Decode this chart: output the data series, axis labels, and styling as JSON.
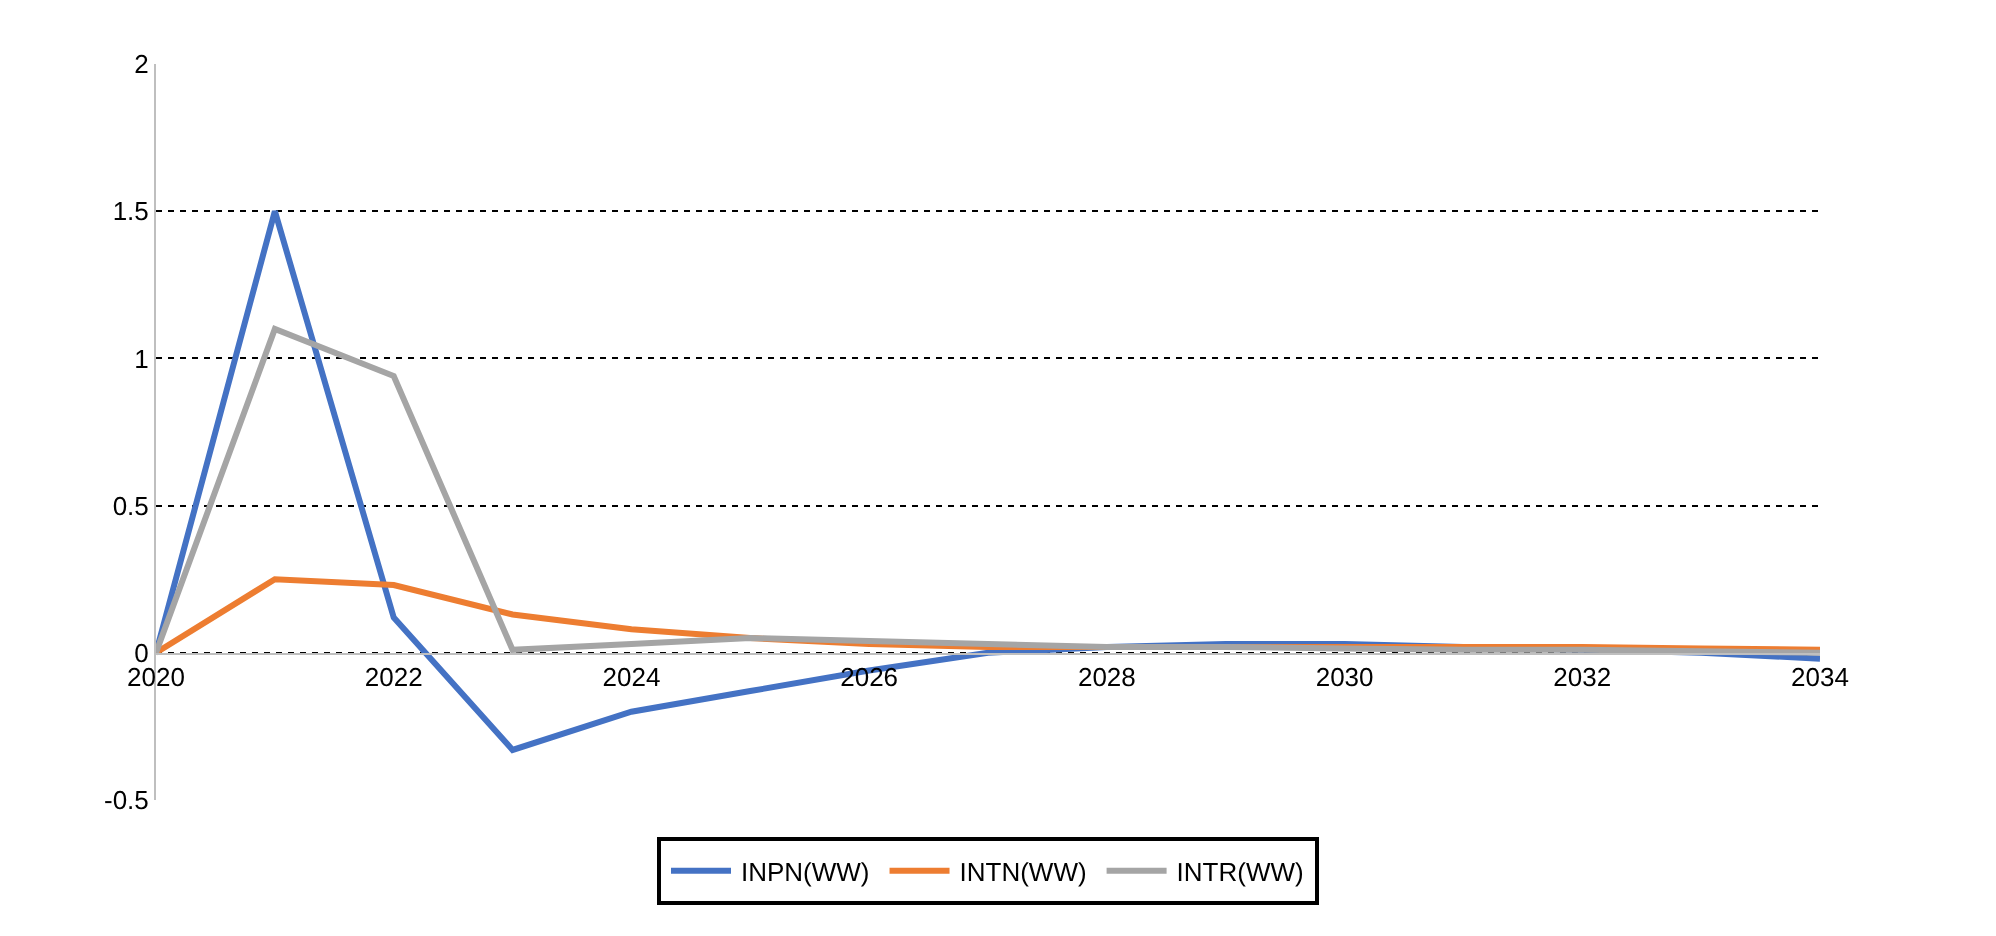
{
  "chart_data": {
    "type": "line",
    "x": [
      2020,
      2021,
      2022,
      2023,
      2024,
      2025,
      2026,
      2027,
      2028,
      2029,
      2030,
      2031,
      2032,
      2033,
      2034
    ],
    "series": [
      {
        "name": "INPN(WW)",
        "color": "#4472c4",
        "values": [
          0,
          1.5,
          0.12,
          -0.33,
          -0.2,
          -0.13,
          -0.06,
          0.0,
          0.02,
          0.03,
          0.03,
          0.02,
          0.01,
          0.0,
          -0.02
        ]
      },
      {
        "name": "INTN(WW)",
        "color": "#ed7d31",
        "values": [
          0,
          0.25,
          0.23,
          0.13,
          0.08,
          0.05,
          0.03,
          0.02,
          0.02,
          0.02,
          0.02,
          0.02,
          0.02,
          0.015,
          0.01
        ]
      },
      {
        "name": "INTR(WW)",
        "color": "#a5a5a5",
        "values": [
          0,
          1.1,
          0.94,
          0.01,
          0.03,
          0.05,
          0.04,
          0.03,
          0.02,
          0.02,
          0.015,
          0.01,
          0.01,
          0.005,
          0.0
        ]
      }
    ],
    "xlim": [
      2020,
      2034
    ],
    "xticks": [
      2020,
      2022,
      2024,
      2026,
      2028,
      2030,
      2032,
      2034
    ],
    "ylim": [
      -0.5,
      2
    ],
    "yticks": [
      -0.5,
      0,
      0.5,
      1,
      1.5,
      2
    ],
    "grid": "y",
    "legend": "bottom",
    "marker": "none",
    "line_style": "solid"
  }
}
